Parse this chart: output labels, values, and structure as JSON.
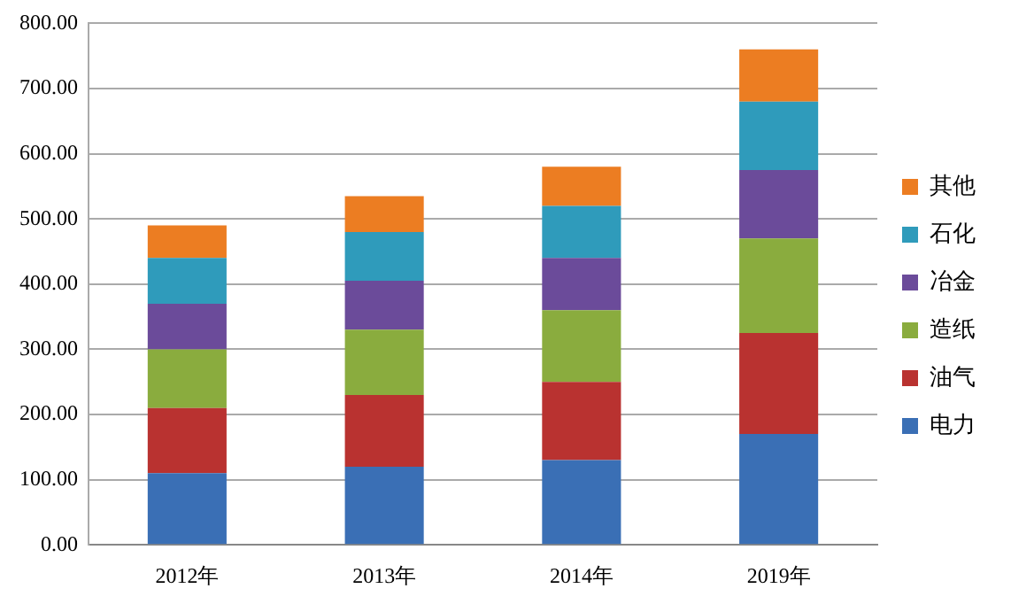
{
  "chart_data": {
    "type": "bar",
    "stacked": true,
    "categories": [
      "2012年",
      "2013年",
      "2014年",
      "2019年"
    ],
    "series": [
      {
        "name": "电力",
        "color": "#3a6fb5",
        "values": [
          110,
          120,
          130,
          170
        ]
      },
      {
        "name": "油气",
        "color": "#b93230",
        "values": [
          100,
          110,
          120,
          155
        ]
      },
      {
        "name": "造纸",
        "color": "#8aac3e",
        "values": [
          90,
          100,
          110,
          145
        ]
      },
      {
        "name": "冶金",
        "color": "#6b4b9a",
        "values": [
          70,
          75,
          80,
          105
        ]
      },
      {
        "name": "石化",
        "color": "#2f9bbb",
        "values": [
          70,
          75,
          80,
          105
        ]
      },
      {
        "name": "其他",
        "color": "#ec7d22",
        "values": [
          50,
          55,
          60,
          80
        ]
      }
    ],
    "ylim": [
      0,
      800
    ],
    "yticks": [
      {
        "value": 0,
        "label": "0.00"
      },
      {
        "value": 100,
        "label": "100.00"
      },
      {
        "value": 200,
        "label": "200.00"
      },
      {
        "value": 300,
        "label": "300.00"
      },
      {
        "value": 400,
        "label": "400.00"
      },
      {
        "value": 500,
        "label": "500.00"
      },
      {
        "value": 600,
        "label": "600.00"
      },
      {
        "value": 700,
        "label": "700.00"
      },
      {
        "value": 800,
        "label": "800.00"
      }
    ],
    "grid": "y",
    "legend": "right"
  }
}
